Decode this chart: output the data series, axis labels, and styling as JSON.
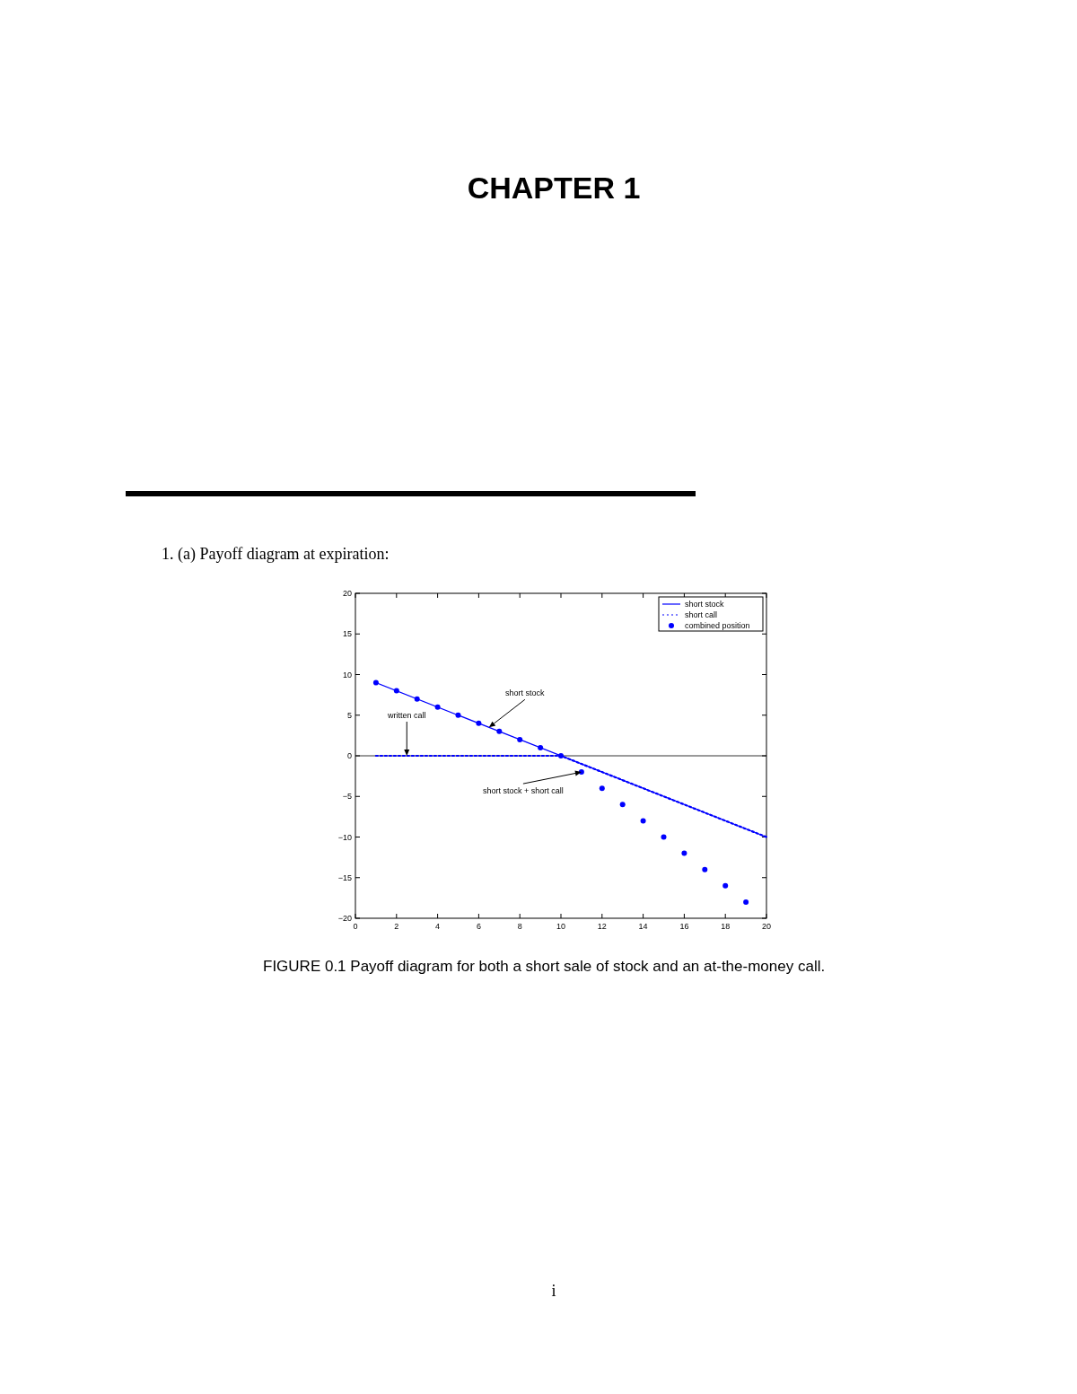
{
  "chart_data": {
    "type": "line",
    "title": "CHAPTER 1",
    "subtitle": "1. (a) Payoff diagram at expiration:",
    "xlim": [
      0,
      20
    ],
    "xticks": [
      0,
      2,
      4,
      6,
      8,
      10,
      12,
      14,
      16,
      18,
      20
    ],
    "ylim": [
      -20,
      20
    ],
    "yticks": [
      -20,
      -15,
      -10,
      -5,
      0,
      5,
      10,
      15,
      20
    ],
    "grid": false,
    "legend": "top right",
    "series": [
      {
        "name": "short stock",
        "color": "#0000ff",
        "line_style": "solid",
        "marker": "none",
        "x": [
          1,
          20
        ],
        "values": [
          9,
          -10
        ]
      },
      {
        "name": "short call",
        "color": "#0000ff",
        "line_style": "dotted",
        "marker": "none",
        "x": [
          1,
          2,
          3,
          4,
          5,
          6,
          7,
          8,
          9,
          10,
          11,
          12,
          13,
          14,
          15,
          16,
          17,
          18,
          19,
          20
        ],
        "values": [
          0,
          0,
          0,
          0,
          0,
          0,
          0,
          0,
          0,
          0,
          -1,
          -2,
          -3,
          -4,
          -5,
          -6,
          -7,
          -8,
          -9,
          -10
        ]
      },
      {
        "name": "combined position",
        "type": "scatter",
        "color": "#0000ff",
        "marker": "circle",
        "x": [
          1,
          2,
          3,
          4,
          5,
          6,
          7,
          8,
          9,
          10,
          11,
          12,
          13,
          14,
          15,
          16,
          17,
          18,
          19
        ],
        "values": [
          9,
          8,
          7,
          6,
          5,
          4,
          3,
          2,
          1,
          0,
          -2,
          -4,
          -6,
          -8,
          -10,
          -12,
          -14,
          -16,
          -18
        ]
      }
    ],
    "ref_lines": [
      {
        "axis": "y",
        "value": 0,
        "color": "#000000"
      }
    ],
    "annotations": [
      {
        "text": "short stock",
        "x": 6.5,
        "y": 3.5
      },
      {
        "text": "written call",
        "x": 2.5,
        "y": 0
      },
      {
        "text": "short stock + short call",
        "x": 11,
        "y": -2
      },
      "FIGURE 0.1 Payoff diagram for both a short sale of stock and an at-the-money call.",
      "i"
    ]
  }
}
